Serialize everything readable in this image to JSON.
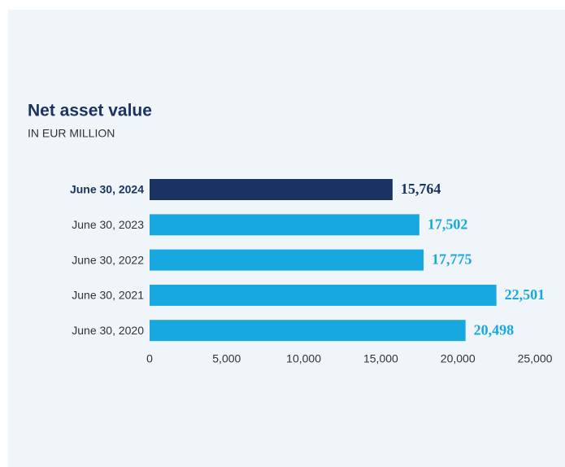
{
  "chart_data": {
    "type": "bar",
    "orientation": "horizontal",
    "title": "Net asset value",
    "subtitle": "IN EUR MILLION",
    "categories": [
      "June 30, 2024",
      "June 30, 2023",
      "June 30, 2022",
      "June 30, 2021",
      "June 30, 2020"
    ],
    "values": [
      15764,
      17502,
      17775,
      22501,
      20498
    ],
    "value_labels": [
      "15,764",
      "17,502",
      "17,775",
      "22,501",
      "20,498"
    ],
    "color": "#18a8e0",
    "highlight_color": "#1b3360",
    "highlight": [
      true,
      false,
      false,
      false,
      false
    ],
    "xlim": [
      0,
      25000
    ],
    "xticks": [
      0,
      {
        "value": 5000,
        "label": "5,000"
      },
      {
        "value": 10000,
        "label": "10,000"
      },
      {
        "value": 15000,
        "label": "15,000"
      },
      {
        "value": 20000,
        "label": "20,000"
      },
      {
        "value": 25000,
        "label": "25,000"
      }
    ],
    "grid": false
  }
}
